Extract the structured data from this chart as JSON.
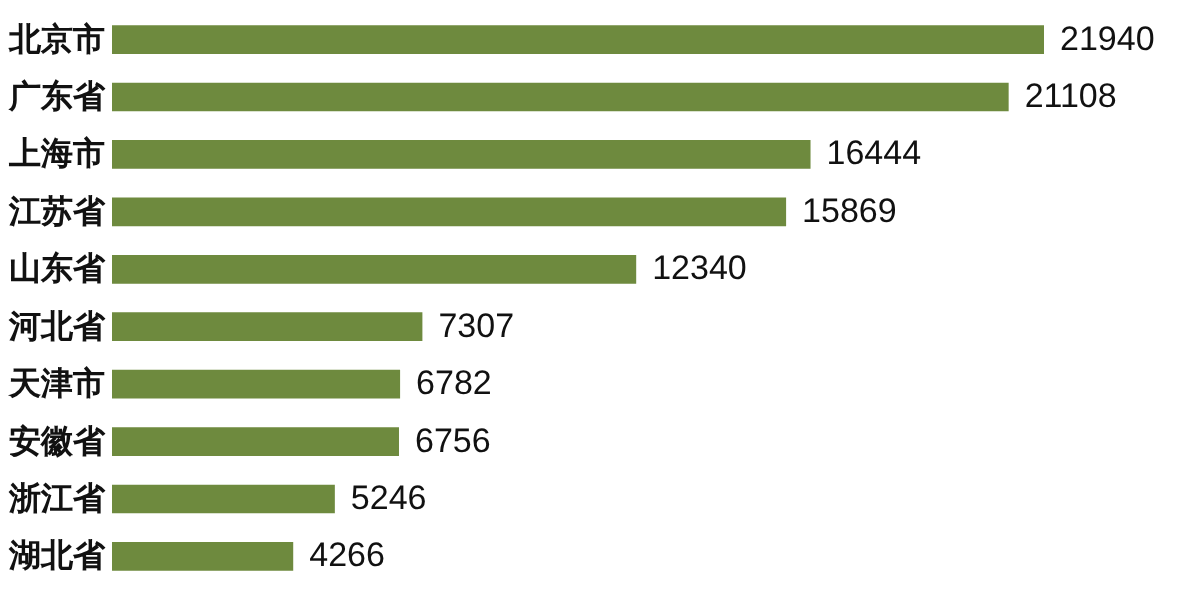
{
  "chart_data": {
    "type": "bar",
    "orientation": "horizontal",
    "categories": [
      "北京市",
      "广东省",
      "上海市",
      "江苏省",
      "山东省",
      "河北省",
      "天津市",
      "安徽省",
      "浙江省",
      "湖北省"
    ],
    "values": [
      21940,
      21108,
      16444,
      15869,
      12340,
      7307,
      6782,
      6756,
      5246,
      4266
    ],
    "color": "#6e8a3e",
    "data_labels": true
  }
}
